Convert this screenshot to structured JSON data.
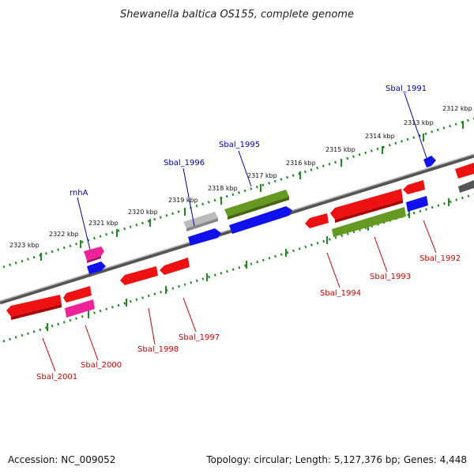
{
  "title": "Shewanella baltica OS155, complete genome",
  "footer": {
    "accession": "Accession: NC_009052",
    "summary": "Topology: circular; Length: 5,127,376 bp; Genes: 4,448"
  },
  "colors": {
    "red_gene": "#ee1111",
    "pink_gene": "#ee2299",
    "blue_gene": "#1111ee",
    "green_gene": "#669922",
    "gray_gene": "#aaaaaa",
    "darkgray_gene": "#555555",
    "backbone": "#777777",
    "tick": "#228822",
    "label_top": "#0000aa",
    "label_bottom": "#cc0000"
  },
  "scale_labels": [
    "2323 kbp",
    "2322 kbp",
    "2321 kbp",
    "2320 kbp",
    "2319 kbp",
    "2318 kbp",
    "2317 kbp",
    "2316 kbp",
    "2315 kbp",
    "2314 kbp",
    "2313 kbp",
    "2312 kbp"
  ],
  "top_labels": [
    "rnhA",
    "Sbal_1996",
    "Sbal_1995",
    "Sbal_1991"
  ],
  "bottom_labels": [
    "Sbal_2001",
    "Sbal_2000",
    "Sbal_1998",
    "Sbal_1997",
    "Sbal_1994",
    "Sbal_1993",
    "Sbal_1992"
  ]
}
